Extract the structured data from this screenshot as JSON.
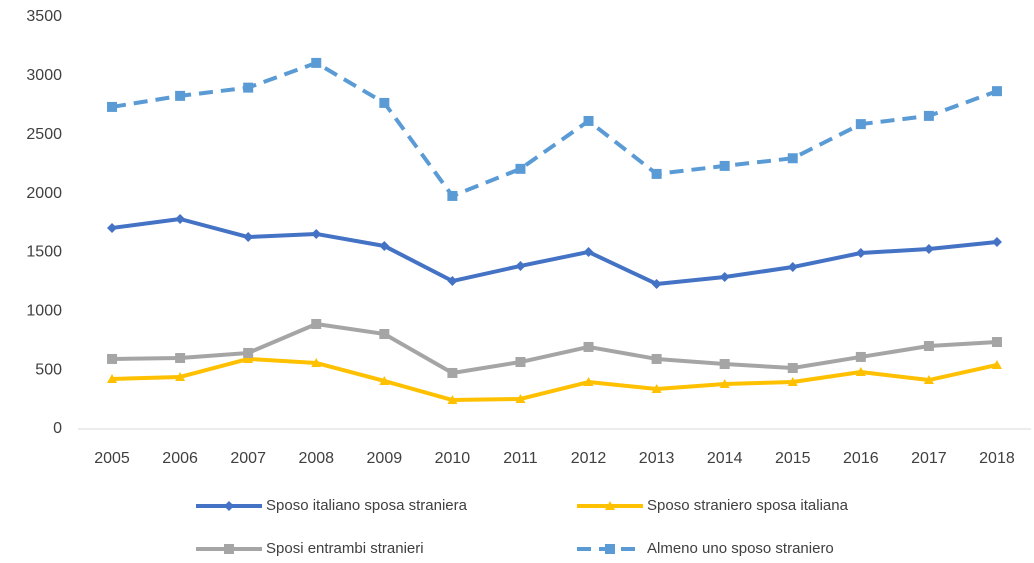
{
  "chart_data": {
    "type": "line",
    "categories": [
      "2005",
      "2006",
      "2007",
      "2008",
      "2009",
      "2010",
      "2011",
      "2012",
      "2013",
      "2014",
      "2015",
      "2016",
      "2017",
      "2018"
    ],
    "series": [
      {
        "name": "Sposo italiano sposa straniera",
        "color": "#4472c4",
        "marker": "diamond",
        "dashed": false,
        "values": [
          1708,
          1784,
          1631,
          1657,
          1555,
          1257,
          1385,
          1504,
          1232,
          1291,
          1376,
          1495,
          1529,
          1589
        ]
      },
      {
        "name": "Sposo straniero sposa italiana",
        "color": "#ffc000",
        "marker": "triangle",
        "dashed": false,
        "values": [
          425,
          442,
          595,
          561,
          408,
          246,
          255,
          399,
          340,
          382,
          399,
          484,
          416,
          544
        ]
      },
      {
        "name": "Sposi entrambi stranieri",
        "color": "#a5a5a5",
        "marker": "square",
        "dashed": false,
        "values": [
          595,
          603,
          646,
          892,
          807,
          476,
          569,
          697,
          595,
          552,
          518,
          612,
          705,
          739
        ]
      },
      {
        "name": "Almeno uno sposo straniero",
        "color": "#5b9bd5",
        "marker": "square",
        "dashed": true,
        "values": [
          2736,
          2830,
          2900,
          3110,
          2770,
          1980,
          2210,
          2617,
          2167,
          2235,
          2300,
          2590,
          2660,
          2870
        ]
      }
    ],
    "ylim": [
      0,
      3500
    ],
    "yticks": [
      0,
      500,
      1000,
      1500,
      2000,
      2500,
      3000,
      3500
    ],
    "grid": false
  }
}
